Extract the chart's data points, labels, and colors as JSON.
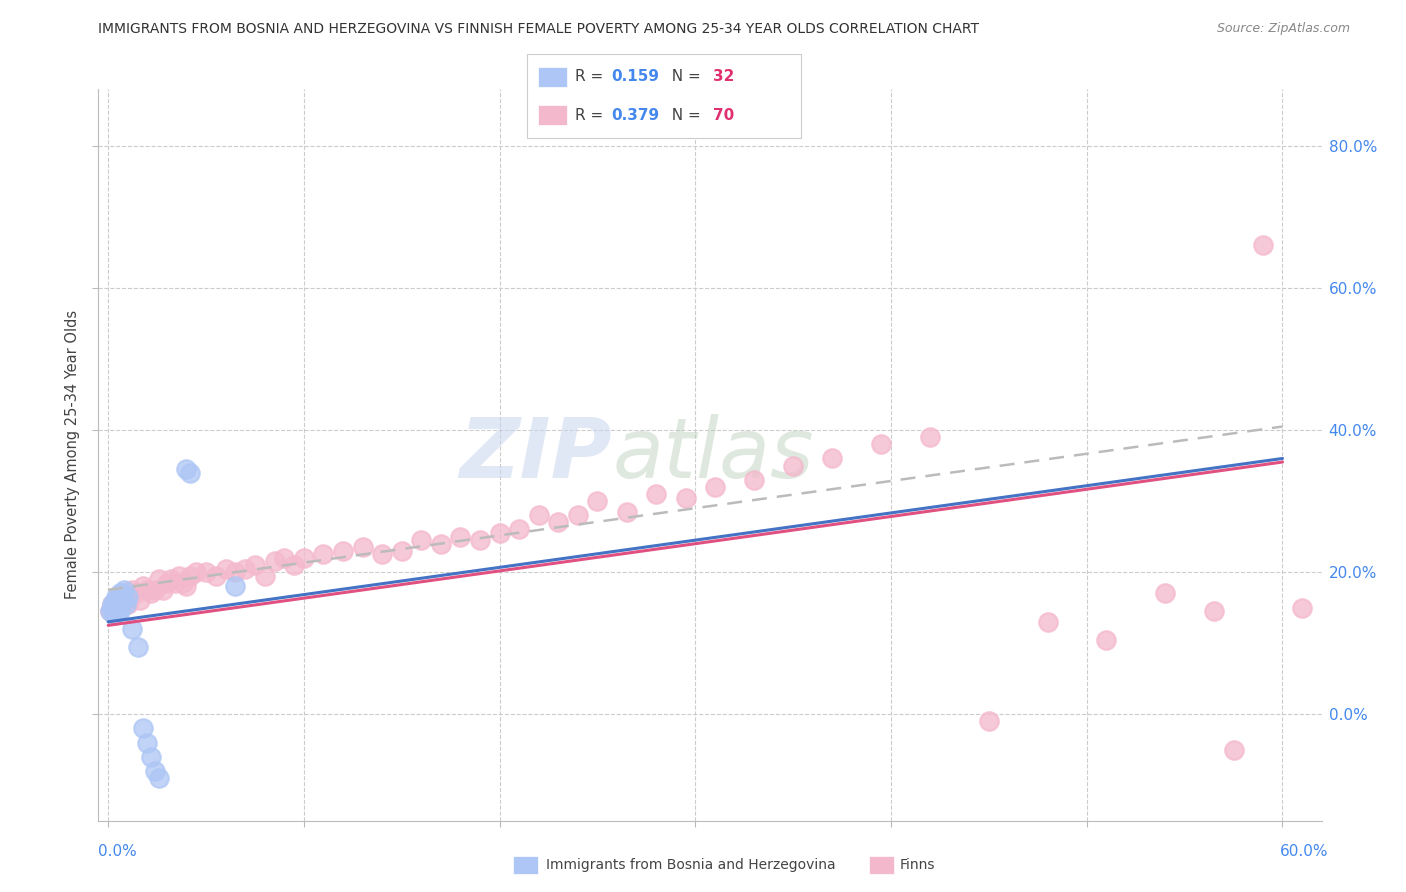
{
  "title": "IMMIGRANTS FROM BOSNIA AND HERZEGOVINA VS FINNISH FEMALE POVERTY AMONG 25-34 YEAR OLDS CORRELATION CHART",
  "source": "Source: ZipAtlas.com",
  "ylabel": "Female Poverty Among 25-34 Year Olds",
  "yaxis_labels": [
    "0.0%",
    "20.0%",
    "40.0%",
    "60.0%",
    "80.0%"
  ],
  "yaxis_values": [
    0.0,
    0.2,
    0.4,
    0.6,
    0.8
  ],
  "xlim": [
    -0.005,
    0.62
  ],
  "ylim": [
    -0.15,
    0.88
  ],
  "blue_color": "#adc6f5",
  "blue_line_color": "#4472c4",
  "pink_color": "#f4b8cc",
  "pink_line_color": "#e05080",
  "dash_color": "#bbbbbb",
  "blue_scatter_x": [
    0.001,
    0.002,
    0.002,
    0.003,
    0.003,
    0.004,
    0.004,
    0.004,
    0.005,
    0.005,
    0.005,
    0.005,
    0.006,
    0.006,
    0.006,
    0.006,
    0.007,
    0.007,
    0.008,
    0.008,
    0.009,
    0.01,
    0.012,
    0.015,
    0.018,
    0.02,
    0.022,
    0.024,
    0.026,
    0.04,
    0.042,
    0.065
  ],
  "blue_scatter_y": [
    0.145,
    0.15,
    0.155,
    0.14,
    0.15,
    0.155,
    0.16,
    0.165,
    0.145,
    0.155,
    0.16,
    0.165,
    0.145,
    0.155,
    0.16,
    0.17,
    0.165,
    0.17,
    0.16,
    0.175,
    0.155,
    0.165,
    0.12,
    0.095,
    -0.02,
    -0.04,
    -0.06,
    -0.08,
    -0.09,
    0.345,
    0.34,
    0.18
  ],
  "pink_scatter_x": [
    0.001,
    0.002,
    0.003,
    0.004,
    0.005,
    0.006,
    0.007,
    0.008,
    0.009,
    0.01,
    0.012,
    0.014,
    0.016,
    0.018,
    0.02,
    0.022,
    0.024,
    0.026,
    0.028,
    0.03,
    0.032,
    0.034,
    0.036,
    0.038,
    0.04,
    0.042,
    0.045,
    0.05,
    0.055,
    0.06,
    0.065,
    0.07,
    0.075,
    0.08,
    0.085,
    0.09,
    0.095,
    0.1,
    0.11,
    0.12,
    0.13,
    0.14,
    0.15,
    0.16,
    0.17,
    0.18,
    0.19,
    0.2,
    0.21,
    0.22,
    0.23,
    0.24,
    0.25,
    0.265,
    0.28,
    0.295,
    0.31,
    0.33,
    0.35,
    0.37,
    0.395,
    0.42,
    0.45,
    0.48,
    0.51,
    0.54,
    0.565,
    0.575,
    0.59,
    0.61
  ],
  "pink_scatter_y": [
    0.145,
    0.155,
    0.15,
    0.16,
    0.155,
    0.165,
    0.17,
    0.16,
    0.16,
    0.155,
    0.175,
    0.17,
    0.16,
    0.18,
    0.175,
    0.17,
    0.175,
    0.19,
    0.175,
    0.185,
    0.19,
    0.185,
    0.195,
    0.185,
    0.18,
    0.195,
    0.2,
    0.2,
    0.195,
    0.205,
    0.2,
    0.205,
    0.21,
    0.195,
    0.215,
    0.22,
    0.21,
    0.22,
    0.225,
    0.23,
    0.235,
    0.225,
    0.23,
    0.245,
    0.24,
    0.25,
    0.245,
    0.255,
    0.26,
    0.28,
    0.27,
    0.28,
    0.3,
    0.285,
    0.31,
    0.305,
    0.32,
    0.33,
    0.35,
    0.36,
    0.38,
    0.39,
    -0.01,
    0.13,
    0.105,
    0.17,
    0.145,
    -0.05,
    0.66,
    0.15
  ],
  "blue_trend_x": [
    0.0,
    0.6
  ],
  "blue_trend_y": [
    0.13,
    0.36
  ],
  "pink_trend_x": [
    0.0,
    0.6
  ],
  "pink_trend_y": [
    0.125,
    0.355
  ],
  "dash_trend_x": [
    0.0,
    0.6
  ],
  "dash_trend_y": [
    0.175,
    0.405
  ]
}
